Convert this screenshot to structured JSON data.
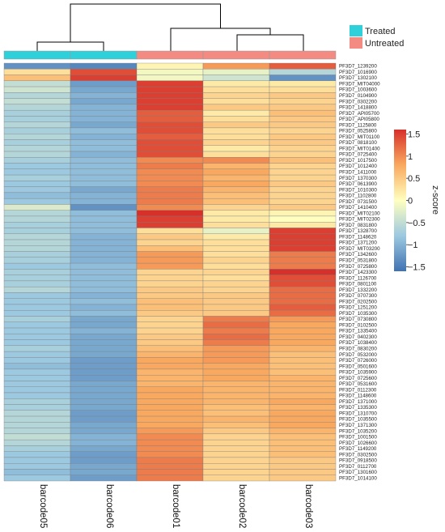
{
  "chart_data": {
    "type": "heatmap",
    "title": "",
    "columns": [
      "barcode05",
      "barcode06",
      "barcode01",
      "barcode02",
      "barcode03"
    ],
    "column_groups": [
      "Treated",
      "Treated",
      "Untreated",
      "Untreated",
      "Untreated"
    ],
    "legend": {
      "annotation": [
        {
          "name": "Treated",
          "color": "#2ED0DA"
        },
        {
          "name": "Untreated",
          "color": "#F38B83"
        }
      ],
      "colorbar": {
        "title": "z-score",
        "ticks": [
          "1.5",
          "1",
          "0.5",
          "0",
          "−0.5",
          "−1",
          "−1.5"
        ],
        "range": [
          -1.6,
          1.6
        ],
        "colors": [
          "#3F72B2",
          "#FFFFBF",
          "#D7302A"
        ]
      }
    },
    "dendrogram": "columns clustered: (barcode05, barcode06) vs (barcode01, (barcode02, barcode03))",
    "rows": [
      {
        "gene": "PF3D7_1239200",
        "z": [
          -1.3,
          -1.4,
          0.1,
          0.9,
          1.3
        ]
      },
      {
        "gene": "PF3D7_1016900",
        "z": [
          0.3,
          1.4,
          -0.1,
          -0.2,
          -0.6
        ]
      },
      {
        "gene": "PF3D7_1302100",
        "z": [
          0.6,
          1.5,
          -0.1,
          -0.4,
          -1.3
        ]
      },
      {
        "gene": "PF3D7_MIT04000",
        "z": [
          -0.5,
          -1.2,
          1.5,
          0.2,
          0.2
        ]
      },
      {
        "gene": "PF3D7_1003600",
        "z": [
          -0.4,
          -1.1,
          1.5,
          0.3,
          0.3
        ]
      },
      {
        "gene": "PF3D7_0104900",
        "z": [
          -0.6,
          -1.0,
          1.5,
          0.4,
          0.5
        ]
      },
      {
        "gene": "PF3D7_0302200",
        "z": [
          -0.5,
          -1.1,
          1.5,
          0.3,
          0.4
        ]
      },
      {
        "gene": "PF3D7_1418800",
        "z": [
          -0.6,
          -1.0,
          1.5,
          0.5,
          0.5
        ]
      },
      {
        "gene": "PF3D7_API05700",
        "z": [
          -0.7,
          -1.0,
          1.3,
          0.2,
          0.6
        ]
      },
      {
        "gene": "PF3D7_API05800",
        "z": [
          -0.7,
          -1.0,
          1.3,
          0.3,
          0.5
        ]
      },
      {
        "gene": "PF3D7_1125800",
        "z": [
          -0.6,
          -1.1,
          1.4,
          0.5,
          0.5
        ]
      },
      {
        "gene": "PF3D7_0525800",
        "z": [
          -0.7,
          -0.9,
          1.4,
          0.3,
          0.4
        ]
      },
      {
        "gene": "PF3D7_MIT01100",
        "z": [
          -0.6,
          -1.0,
          1.3,
          0.3,
          0.5
        ]
      },
      {
        "gene": "PF3D7_0818100",
        "z": [
          -0.7,
          -0.9,
          1.4,
          0.4,
          0.5
        ]
      },
      {
        "gene": "PF3D7_MIT01400",
        "z": [
          -0.6,
          -0.9,
          1.4,
          0.2,
          0.4
        ]
      },
      {
        "gene": "PF3D7_0725400",
        "z": [
          -0.6,
          -1.0,
          1.4,
          0.3,
          0.4
        ]
      },
      {
        "gene": "PF3D7_1017500",
        "z": [
          -0.7,
          -0.9,
          1.0,
          1.0,
          0.6
        ]
      },
      {
        "gene": "PF3D7_1012400",
        "z": [
          -0.8,
          -0.9,
          1.1,
          0.7,
          0.4
        ]
      },
      {
        "gene": "PF3D7_1411000",
        "z": [
          -0.8,
          -0.9,
          1.0,
          0.8,
          0.4
        ]
      },
      {
        "gene": "PF3D7_1370300",
        "z": [
          -0.7,
          -0.9,
          1.0,
          0.7,
          0.4
        ]
      },
      {
        "gene": "PF3D7_0613900",
        "z": [
          -0.8,
          -0.9,
          1.0,
          0.8,
          0.5
        ]
      },
      {
        "gene": "PF3D7_1010300",
        "z": [
          -0.8,
          -1.1,
          1.1,
          0.7,
          0.4
        ]
      },
      {
        "gene": "PF3D7_1102800",
        "z": [
          -0.9,
          -1.0,
          1.1,
          0.6,
          0.4
        ]
      },
      {
        "gene": "PF3D7_0731500",
        "z": [
          -0.8,
          -1.0,
          1.1,
          0.6,
          0.4
        ]
      },
      {
        "gene": "PF3D7_1410400",
        "z": [
          -0.3,
          -1.3,
          1.0,
          0.4,
          0.5
        ]
      },
      {
        "gene": "PF3D7_MIT02100",
        "z": [
          -0.6,
          -0.9,
          1.6,
          0.2,
          0.1
        ]
      },
      {
        "gene": "PF3D7_MIT02300",
        "z": [
          -0.6,
          -0.9,
          1.5,
          0.2,
          0.0
        ]
      },
      {
        "gene": "PF3D7_0831800",
        "z": [
          -0.7,
          -0.9,
          1.5,
          0.3,
          0.2
        ]
      },
      {
        "gene": "PF3D7_1328700",
        "z": [
          -0.7,
          -0.9,
          0.3,
          -0.2,
          1.5
        ]
      },
      {
        "gene": "PF3D7_1148620",
        "z": [
          -0.6,
          -1.0,
          0.5,
          0.2,
          1.5
        ]
      },
      {
        "gene": "PF3D7_1371200",
        "z": [
          -0.6,
          -1.0,
          0.4,
          0.3,
          1.5
        ]
      },
      {
        "gene": "PF3D7_MIT03200",
        "z": [
          -0.6,
          -1.0,
          0.6,
          0.3,
          1.5
        ]
      },
      {
        "gene": "PF3D7_1342600",
        "z": [
          -0.7,
          -1.0,
          0.9,
          0.3,
          1.1
        ]
      },
      {
        "gene": "PF3D7_0531800",
        "z": [
          -0.7,
          -1.0,
          0.9,
          0.4,
          1.1
        ]
      },
      {
        "gene": "PF3D7_0725800",
        "z": [
          -0.8,
          -0.9,
          0.9,
          0.3,
          1.1
        ]
      },
      {
        "gene": "PF3D7_1423300",
        "z": [
          -0.7,
          -0.9,
          0.4,
          0.4,
          1.6
        ]
      },
      {
        "gene": "PF3D7_1126700",
        "z": [
          -0.7,
          -0.9,
          0.4,
          0.3,
          1.4
        ]
      },
      {
        "gene": "PF3D7_0801100",
        "z": [
          -0.7,
          -0.9,
          0.4,
          0.4,
          1.4
        ]
      },
      {
        "gene": "PF3D7_1332200",
        "z": [
          -0.6,
          -0.9,
          0.5,
          0.4,
          1.2
        ]
      },
      {
        "gene": "PF3D7_0707300",
        "z": [
          -0.8,
          -1.0,
          0.5,
          0.5,
          1.2
        ]
      },
      {
        "gene": "PF3D7_0202500",
        "z": [
          -0.8,
          -0.9,
          0.6,
          0.5,
          1.2
        ]
      },
      {
        "gene": "PF3D7_1251200",
        "z": [
          -0.8,
          -1.0,
          0.6,
          0.5,
          1.3
        ]
      },
      {
        "gene": "PF3D7_1035300",
        "z": [
          -0.8,
          -0.9,
          0.5,
          0.5,
          1.2
        ]
      },
      {
        "gene": "PF3D7_0730800",
        "z": [
          -0.7,
          -1.1,
          0.4,
          1.1,
          0.9
        ]
      },
      {
        "gene": "PF3D7_0102500",
        "z": [
          -0.8,
          -1.1,
          0.4,
          1.2,
          0.8
        ]
      },
      {
        "gene": "PF3D7_1335400",
        "z": [
          -0.8,
          -1.0,
          0.4,
          1.1,
          0.8
        ]
      },
      {
        "gene": "PF3D7_0402300",
        "z": [
          -0.8,
          -1.1,
          0.5,
          1.2,
          0.8
        ]
      },
      {
        "gene": "PF3D7_1038400",
        "z": [
          -0.8,
          -1.1,
          0.5,
          1.1,
          0.8
        ]
      },
      {
        "gene": "PF3D7_0830200",
        "z": [
          -0.7,
          -1.1,
          0.6,
          0.9,
          0.7
        ]
      },
      {
        "gene": "PF3D7_0532000",
        "z": [
          -0.8,
          -1.1,
          0.7,
          0.9,
          0.6
        ]
      },
      {
        "gene": "PF3D7_0726000",
        "z": [
          -0.8,
          -1.2,
          0.8,
          0.9,
          0.6
        ]
      },
      {
        "gene": "PF3D7_0501600",
        "z": [
          -0.9,
          -1.2,
          0.8,
          0.8,
          0.6
        ]
      },
      {
        "gene": "PF3D7_1035900",
        "z": [
          -0.8,
          -1.2,
          0.7,
          0.8,
          0.6
        ]
      },
      {
        "gene": "PF3D7_0725600",
        "z": [
          -0.8,
          -1.2,
          0.7,
          0.8,
          0.7
        ]
      },
      {
        "gene": "PF3D7_0531600",
        "z": [
          -0.8,
          -1.1,
          0.7,
          0.7,
          0.7
        ]
      },
      {
        "gene": "PF3D7_0112300",
        "z": [
          -0.8,
          -1.1,
          0.8,
          0.7,
          0.7
        ]
      },
      {
        "gene": "PF3D7_1148600",
        "z": [
          -0.8,
          -1.1,
          0.8,
          0.7,
          0.7
        ]
      },
      {
        "gene": "PF3D7_1371000",
        "z": [
          -0.7,
          -1.1,
          0.8,
          0.7,
          0.8
        ]
      },
      {
        "gene": "PF3D7_1335300",
        "z": [
          -0.7,
          -1.1,
          0.8,
          0.6,
          0.7
        ]
      },
      {
        "gene": "PF3D7_1310700",
        "z": [
          -0.6,
          -1.2,
          0.8,
          0.6,
          0.8
        ]
      },
      {
        "gene": "PF3D7_1035500",
        "z": [
          -0.6,
          -1.2,
          0.8,
          0.7,
          0.8
        ]
      },
      {
        "gene": "PF3D7_1371300",
        "z": [
          -0.6,
          -1.1,
          0.8,
          0.6,
          0.8
        ]
      },
      {
        "gene": "PF3D7_1035200",
        "z": [
          -0.6,
          -1.1,
          0.9,
          0.5,
          0.7
        ]
      },
      {
        "gene": "PF3D7_1001500",
        "z": [
          -0.5,
          -1.0,
          1.0,
          0.4,
          0.6
        ]
      },
      {
        "gene": "PF3D7_1026600",
        "z": [
          -0.6,
          -1.0,
          1.0,
          0.4,
          0.6
        ]
      },
      {
        "gene": "PF3D7_1149200",
        "z": [
          -0.7,
          -1.1,
          1.0,
          0.4,
          0.6
        ]
      },
      {
        "gene": "PF3D7_0302500",
        "z": [
          -0.8,
          -1.2,
          1.0,
          0.4,
          0.6
        ]
      },
      {
        "gene": "PF3D7_0918500",
        "z": [
          -0.8,
          -1.2,
          1.1,
          0.4,
          0.5
        ]
      },
      {
        "gene": "PF3D7_0112700",
        "z": [
          -0.8,
          -1.1,
          1.1,
          0.4,
          0.5
        ]
      },
      {
        "gene": "PF3D7_1301600",
        "z": [
          -0.9,
          -1.1,
          1.1,
          0.4,
          0.5
        ]
      },
      {
        "gene": "PF3D7_1014100",
        "z": [
          -0.8,
          -1.2,
          1.1,
          0.4,
          0.5
        ]
      }
    ]
  }
}
